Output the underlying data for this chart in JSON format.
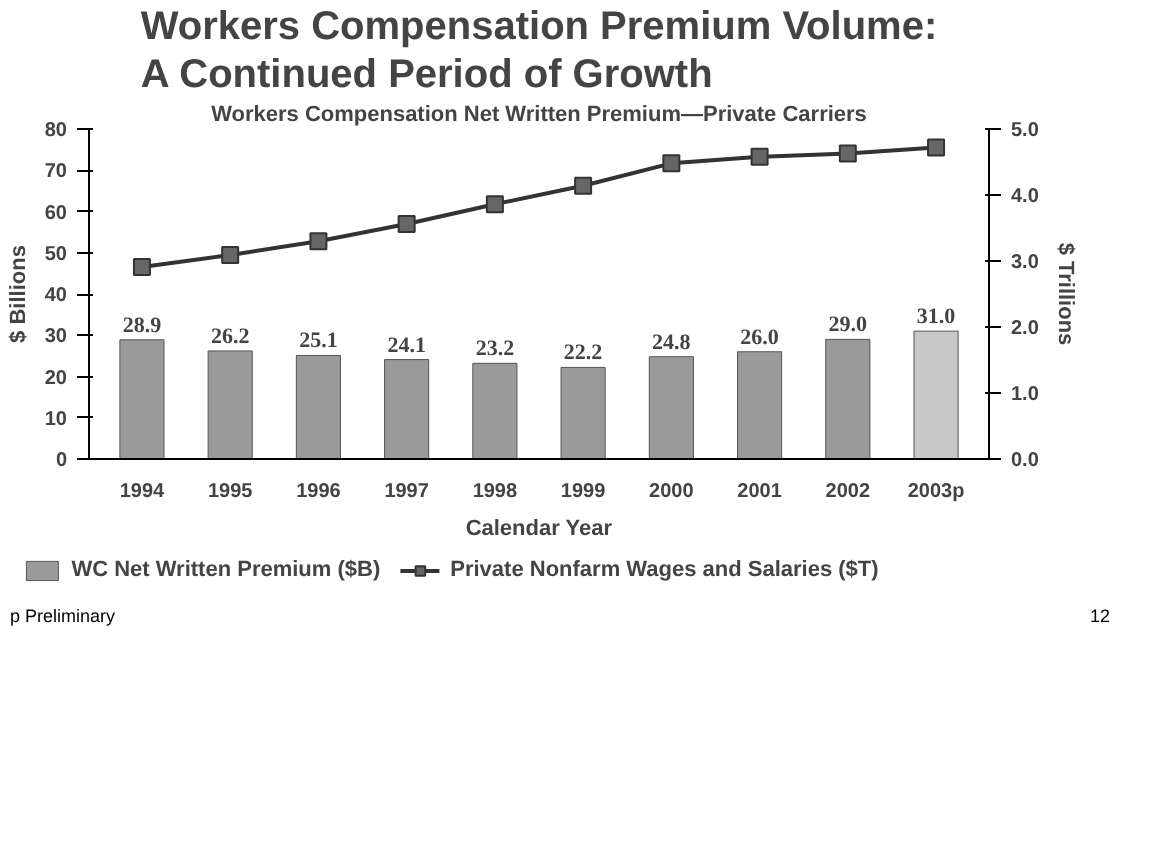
{
  "chart_data": {
    "type": "bar",
    "title": "Workers Compensation Premium Volume: A Continued Period of Growth",
    "subtitle": "Workers Compensation Net Written Premium—Private Carriers",
    "xlabel": "Calendar Year",
    "ylabel": "$ Billions",
    "y2label": "$ Trillions",
    "categories": [
      "1994",
      "1995",
      "1996",
      "1997",
      "1998",
      "1999",
      "2000",
      "2001",
      "2002",
      "2003p"
    ],
    "series": [
      {
        "name": "WC Net Written Premium ($B)",
        "colors": [
          "#9a9a9a",
          "#9a9a9a",
          "#9a9a9a",
          "#9a9a9a",
          "#9a9a9a",
          "#9a9a9a",
          "#9a9a9a",
          "#9a9a9a",
          "#9a9a9a",
          "#c8c8c8"
        ],
        "values": [
          28.9,
          26.2,
          25.1,
          24.1,
          23.2,
          22.2,
          24.8,
          26.0,
          29.0,
          31.0
        ],
        "value_labels": [
          "28.9",
          "26.2",
          "25.1",
          "24.1",
          "23.2",
          "22.2",
          "24.8",
          "26.0",
          "29.0",
          "31.0"
        ]
      },
      {
        "name": "Private Nonfarm Wages and Salaries ($T)",
        "type": "line",
        "axis": "y2",
        "color": "#333333",
        "marker": "square",
        "values": [
          2.91,
          3.09,
          3.3,
          3.56,
          3.86,
          4.14,
          4.48,
          4.58,
          4.63,
          4.72
        ]
      }
    ],
    "ylim": [
      0,
      80
    ],
    "yticks": [
      0,
      10,
      20,
      30,
      40,
      50,
      60,
      70,
      80
    ],
    "y2lim": [
      0,
      5
    ],
    "y2ticks": [
      {
        "value": 0,
        "label": "0.0"
      },
      {
        "value": 1,
        "label": "1.0"
      },
      {
        "value": 2,
        "label": "2.0"
      },
      {
        "value": 3,
        "label": "3.0"
      },
      {
        "value": 4,
        "label": "4.0"
      },
      {
        "value": 5,
        "label": "5.0"
      }
    ],
    "grid": false,
    "legend": "bottom",
    "annotations": [
      "p Preliminary",
      "12"
    ]
  }
}
